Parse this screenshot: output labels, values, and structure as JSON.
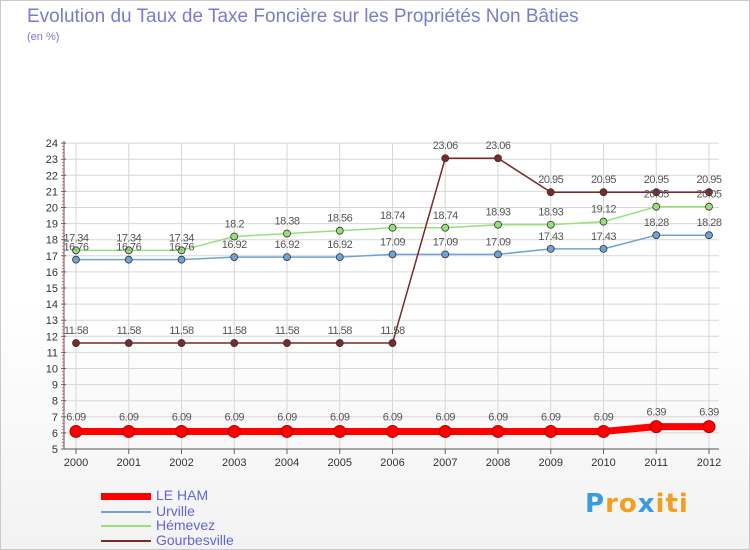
{
  "chart_data": {
    "type": "line",
    "title": "Evolution du Taux de Taxe Foncière sur les Propriétés Non Bâties",
    "subtitle": "(en %)",
    "x": [
      "2000",
      "2001",
      "2002",
      "2003",
      "2004",
      "2005",
      "2006",
      "2007",
      "2008",
      "2009",
      "2010",
      "2011",
      "2012"
    ],
    "ylim": [
      5,
      24
    ],
    "yticks": [
      "5",
      "6",
      "7",
      "8",
      "9",
      "10",
      "11",
      "12",
      "13",
      "14",
      "15",
      "16",
      "17",
      "18",
      "19",
      "20",
      "21",
      "22",
      "23",
      "24"
    ],
    "grid": true,
    "legend_position": "bottom-left",
    "series": [
      {
        "name": "LE HAM",
        "color": "#ff0000",
        "values": [
          6.09,
          6.09,
          6.09,
          6.09,
          6.09,
          6.09,
          6.09,
          6.09,
          6.09,
          6.09,
          6.09,
          6.39,
          6.39
        ],
        "labels": [
          "6.09",
          "6.09",
          "6.09",
          "6.09",
          "6.09",
          "6.09",
          "6.09",
          "6.09",
          "6.09",
          "6.09",
          "6.09",
          "6.39",
          "6.39"
        ]
      },
      {
        "name": "Urville",
        "color": "#6fa3d6",
        "values": [
          16.76,
          16.76,
          16.76,
          16.92,
          16.92,
          16.92,
          17.09,
          17.09,
          17.09,
          17.43,
          17.43,
          18.28,
          18.28
        ],
        "labels": [
          "16.76",
          "16.76",
          "16.76",
          "16.92",
          "16.92",
          "16.92",
          "17.09",
          "17.09",
          "17.09",
          "17.43",
          "17.43",
          "18.28",
          "18.28"
        ]
      },
      {
        "name": "Hémevez",
        "color": "#99e07a",
        "values": [
          17.34,
          17.34,
          17.34,
          18.2,
          18.38,
          18.56,
          18.74,
          18.74,
          18.93,
          18.93,
          19.12,
          20.05,
          20.05
        ],
        "labels": [
          "17.34",
          "17.34",
          "17.34",
          "18.2",
          "18.38",
          "18.56",
          "18.74",
          "18.74",
          "18.93",
          "18.93",
          "19.12",
          "20.05",
          "20.05"
        ]
      },
      {
        "name": "Gourbesville",
        "color": "#7a2a2a",
        "values": [
          11.58,
          11.58,
          11.58,
          11.58,
          11.58,
          11.58,
          11.58,
          23.06,
          23.06,
          20.95,
          20.95,
          20.95,
          20.95
        ],
        "labels": [
          "11.58",
          "11.58",
          "11.58",
          "11.58",
          "11.58",
          "11.58",
          "11.58",
          "23.06",
          "23.06",
          "20.95",
          "20.95",
          "20.95",
          "20.95"
        ]
      }
    ]
  },
  "legend": [
    {
      "label": "LE HAM",
      "color": "#ff0000"
    },
    {
      "label": "Urville",
      "color": "#6fa3d6"
    },
    {
      "label": "Hémevez",
      "color": "#99e07a"
    },
    {
      "label": "Gourbesville",
      "color": "#7a2a2a"
    }
  ],
  "logo": {
    "letters": [
      "P",
      "r",
      "o",
      "x",
      "i",
      "t",
      "i"
    ],
    "colors": [
      "#3a9be0",
      "#f0a020",
      "#f0a020",
      "#3a9be0",
      "#f0a020",
      "#f0a020",
      "#f0a020"
    ]
  }
}
